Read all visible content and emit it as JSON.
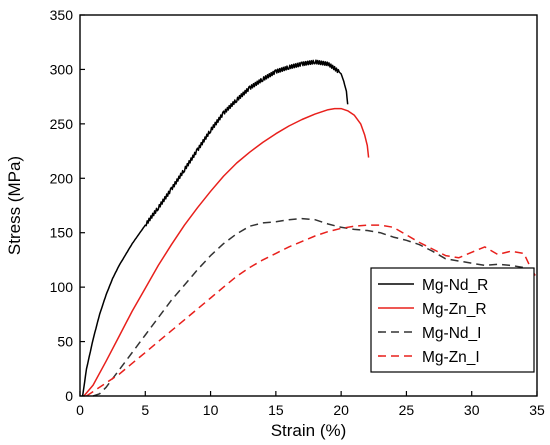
{
  "chart_data": {
    "type": "line",
    "title": "",
    "xlabel": "Strain (%)",
    "ylabel": "Stress (MPa)",
    "xlim": [
      0,
      35
    ],
    "ylim": [
      0,
      350
    ],
    "xticks": [
      0,
      5,
      10,
      15,
      20,
      25,
      30,
      35
    ],
    "yticks": [
      0,
      50,
      100,
      150,
      200,
      250,
      300,
      350
    ],
    "grid": false,
    "legend_position": "bottom-right",
    "series": [
      {
        "name": "Mg-Nd_R",
        "color": "#000000",
        "style": "solid",
        "serrated": true,
        "x": [
          0.2,
          0.5,
          1.0,
          1.5,
          2.0,
          2.5,
          3.0,
          4.0,
          5.0,
          6.0,
          7.0,
          8.0,
          9.0,
          10.0,
          11.0,
          12.0,
          13.0,
          14.0,
          15.0,
          16.0,
          17.0,
          18.0,
          18.5,
          19.0,
          19.5,
          20.0,
          20.2,
          20.4,
          20.5
        ],
        "y": [
          0,
          25,
          52,
          75,
          93,
          108,
          120,
          140,
          157,
          173,
          190,
          208,
          226,
          244,
          260,
          272,
          283,
          291,
          298,
          302,
          305,
          307,
          306,
          305,
          301,
          296,
          289,
          280,
          268
        ]
      },
      {
        "name": "Mg-Zn_R",
        "color": "#e8201c",
        "style": "solid",
        "serrated": false,
        "x": [
          0.3,
          1.0,
          2.0,
          3.0,
          4.0,
          5.0,
          6.0,
          7.0,
          8.0,
          9.0,
          10.0,
          11.0,
          12.0,
          13.0,
          14.0,
          15.0,
          16.0,
          17.0,
          18.0,
          19.0,
          19.5,
          20.0,
          20.5,
          21.0,
          21.5,
          21.8,
          22.0,
          22.1
        ],
        "y": [
          0,
          10,
          32,
          55,
          78,
          99,
          120,
          139,
          157,
          173,
          188,
          202,
          214,
          224,
          233,
          241,
          248,
          254,
          259,
          263,
          264,
          264,
          262,
          258,
          250,
          240,
          230,
          219
        ]
      },
      {
        "name": "Mg-Nd_I",
        "color": "#333333",
        "style": "dashed",
        "serrated": false,
        "x": [
          1.0,
          1.5,
          2.0,
          3.0,
          4.0,
          5.0,
          6.0,
          7.0,
          8.0,
          9.0,
          10.0,
          11.0,
          12.0,
          13.0,
          14.0,
          15.0,
          16.0,
          17.0,
          18.0,
          19.0,
          20.0,
          21.0,
          22.0,
          23.0,
          24.0,
          25.0,
          26.0,
          27.0,
          28.0,
          29.0,
          30.0,
          31.0,
          32.0,
          33.0,
          34.0,
          34.5,
          35.0
        ],
        "y": [
          0,
          2,
          8,
          24,
          40,
          56,
          72,
          88,
          102,
          116,
          129,
          140,
          149,
          156,
          159,
          160,
          162,
          163,
          162,
          158,
          155,
          153,
          152,
          150,
          146,
          143,
          139,
          133,
          126,
          124,
          122,
          120,
          121,
          120,
          118,
          115,
          119
        ]
      },
      {
        "name": "Mg-Zn_I",
        "color": "#e8201c",
        "style": "dashed",
        "serrated": false,
        "x": [
          0.5,
          1.0,
          2.0,
          3.0,
          4.0,
          5.0,
          6.0,
          7.0,
          8.0,
          9.0,
          10.0,
          11.0,
          12.0,
          13.0,
          14.0,
          15.0,
          16.0,
          17.0,
          18.0,
          19.0,
          20.0,
          21.0,
          22.0,
          23.0,
          24.0,
          25.0,
          26.0,
          27.0,
          28.0,
          29.0,
          30.0,
          31.0,
          32.0,
          33.0,
          34.0,
          34.5,
          35.0
        ],
        "y": [
          0,
          4,
          12,
          20,
          30,
          40,
          50,
          60,
          70,
          80,
          90,
          100,
          110,
          118,
          125,
          131,
          137,
          142,
          147,
          151,
          154,
          156,
          157,
          157,
          155,
          148,
          141,
          135,
          129,
          127,
          132,
          137,
          130,
          133,
          131,
          118,
          108
        ]
      }
    ]
  }
}
